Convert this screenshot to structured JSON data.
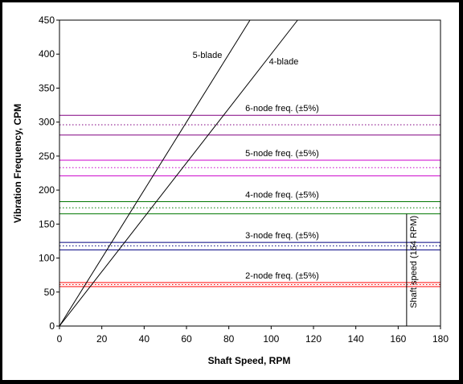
{
  "chart_data": {
    "type": "line",
    "title": "",
    "xlabel": "Shaft Speed, RPM",
    "ylabel": "Vibration Frequency, CPM",
    "xlim": [
      0,
      180
    ],
    "ylim": [
      0,
      450
    ],
    "xticks": [
      0,
      20,
      40,
      60,
      80,
      100,
      120,
      140,
      160,
      180
    ],
    "yticks": [
      0,
      50,
      100,
      150,
      200,
      250,
      300,
      350,
      400,
      450
    ],
    "grid": false,
    "series": [
      {
        "name": "5-blade",
        "points": [
          [
            0,
            0
          ],
          [
            90,
            450
          ]
        ],
        "color": "#000000"
      },
      {
        "name": "4-blade",
        "points": [
          [
            0,
            0
          ],
          [
            112.5,
            450
          ]
        ],
        "color": "#000000"
      }
    ],
    "bands": [
      {
        "label": "6-node freq. (±5%)",
        "center": 296,
        "upper": 310,
        "lower": 281,
        "color": "#800080"
      },
      {
        "label": "5-node freq. (±5%)",
        "center": 233,
        "upper": 244,
        "lower": 221,
        "color": "#cc00cc"
      },
      {
        "label": "4-node freq. (±5%)",
        "center": 174,
        "upper": 183,
        "lower": 165,
        "color": "#007700"
      },
      {
        "label": "3-node freq. (±5%)",
        "center": 118,
        "upper": 123,
        "lower": 112,
        "color": "#000080"
      },
      {
        "label": "2-node freq. (±5%)",
        "center": 61,
        "upper": 64,
        "lower": 58,
        "color": "#ff0000"
      }
    ],
    "vertical_marker": {
      "label": "Shaft speed (164 RPM)",
      "x": 164,
      "color": "#000000"
    }
  }
}
